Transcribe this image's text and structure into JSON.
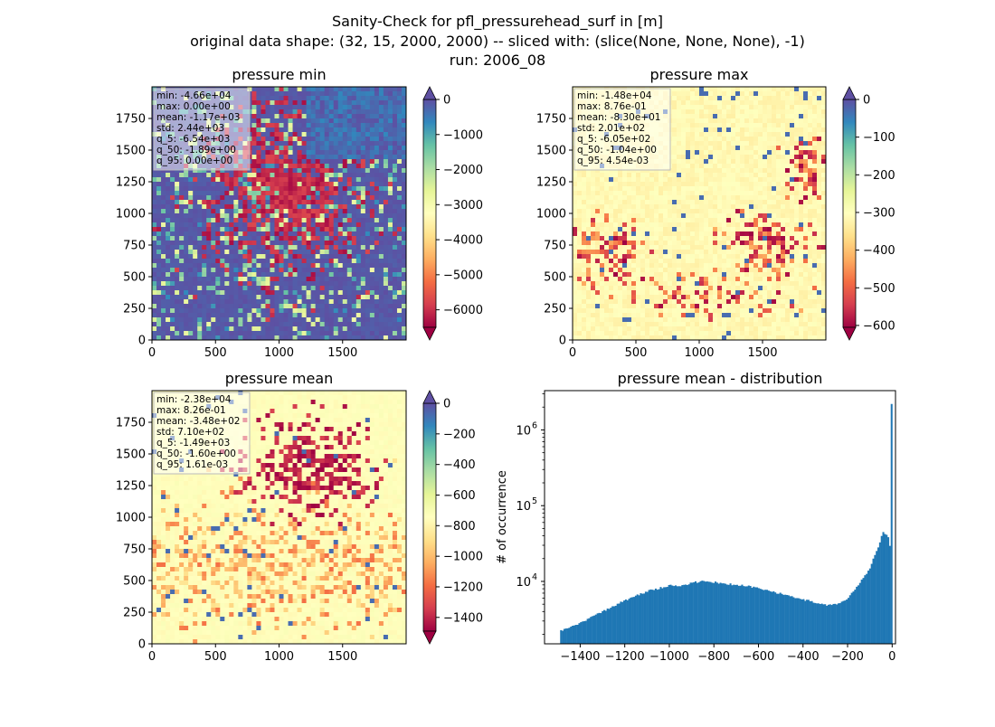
{
  "figure": {
    "title_lines": [
      "Sanity-Check for pfl_pressurehead_surf in [m]",
      "original data shape: (32, 15, 2000, 2000) -- sliced with: (slice(None, None, None), -1)",
      "run: 2006_08"
    ]
  },
  "colors": {
    "background": "#ffffff",
    "histogram_bar": "#1f77b4",
    "spectral": [
      "#9e0142",
      "#d53e4f",
      "#f46d43",
      "#fdae61",
      "#fee08b",
      "#ffffbf",
      "#e6f598",
      "#abdda4",
      "#66c2a5",
      "#3288bd",
      "#5e4fa2"
    ]
  },
  "chart_data": [
    {
      "id": "min",
      "type": "heatmap",
      "title": "pressure min",
      "colormap": "Spectral",
      "xlim": [
        0,
        2000
      ],
      "ylim": [
        0,
        2000
      ],
      "x_ticks": [
        "0",
        "500",
        "1000",
        "1500"
      ],
      "y_ticks": [
        "0",
        "250",
        "500",
        "750",
        "1000",
        "1250",
        "1500",
        "1750"
      ],
      "color_range": [
        -6500,
        0
      ],
      "colorbar_ticks": [
        "0",
        "−1000",
        "−2000",
        "−3000",
        "−4000",
        "−5000",
        "−6000"
      ],
      "colorbar_tick_values": [
        0,
        -1000,
        -2000,
        -3000,
        -4000,
        -5000,
        -6000
      ],
      "colorbar_extend": "both",
      "stats": [
        "min: -4.66e+04",
        "max: 0.00e+00",
        "mean: -1.17e+03",
        "std: 2.44e+03",
        "q_5: -6.54e+03",
        "q_50: -1.89e+00",
        "q_95: 0.00e+00"
      ]
    },
    {
      "id": "max",
      "type": "heatmap",
      "title": "pressure max",
      "colormap": "Spectral",
      "xlim": [
        0,
        2000
      ],
      "ylim": [
        0,
        2000
      ],
      "x_ticks": [
        "0",
        "500",
        "1000",
        "1500"
      ],
      "y_ticks": [
        "0",
        "250",
        "500",
        "750",
        "1000",
        "1250",
        "1500",
        "1750"
      ],
      "color_range": [
        -605,
        0
      ],
      "colorbar_ticks": [
        "0",
        "−100",
        "−200",
        "−300",
        "−400",
        "−500",
        "−600"
      ],
      "colorbar_tick_values": [
        0,
        -100,
        -200,
        -300,
        -400,
        -500,
        -600
      ],
      "colorbar_extend": "both",
      "stats": [
        "min: -1.48e+04",
        "max: 8.76e-01",
        "mean: -8.30e+01",
        "std: 2.01e+02",
        "q_5: -6.05e+02",
        "q_50: -1.04e+00",
        "q_95: 4.54e-03"
      ]
    },
    {
      "id": "mean",
      "type": "heatmap",
      "title": "pressure mean",
      "colormap": "Spectral",
      "xlim": [
        0,
        2000
      ],
      "ylim": [
        0,
        2000
      ],
      "x_ticks": [
        "0",
        "500",
        "1000",
        "1500"
      ],
      "y_ticks": [
        "0",
        "250",
        "500",
        "750",
        "1000",
        "1250",
        "1500",
        "1750"
      ],
      "color_range": [
        -1490,
        0
      ],
      "colorbar_ticks": [
        "0",
        "−200",
        "−400",
        "−600",
        "−800",
        "−1000",
        "−1200",
        "−1400"
      ],
      "colorbar_tick_values": [
        0,
        -200,
        -400,
        -600,
        -800,
        -1000,
        -1200,
        -1400
      ],
      "colorbar_extend": "both",
      "stats": [
        "min: -2.38e+04",
        "max: 8.26e-01",
        "mean: -3.48e+02",
        "std: 7.10e+02",
        "q_5: -1.49e+03",
        "q_50: -1.60e+00",
        "q_95: 1.61e-03"
      ]
    },
    {
      "id": "dist",
      "type": "bar",
      "title": "pressure mean - distribution",
      "ylabel": "# of occurrence",
      "yscale": "log",
      "xlim": [
        -1560,
        15
      ],
      "ylim": [
        1500,
        3300000
      ],
      "x_ticks": [
        "−1400",
        "−1200",
        "−1000",
        "−800",
        "−600",
        "−400",
        "−200",
        "0"
      ],
      "x_tick_values": [
        -1400,
        -1200,
        -1000,
        -800,
        -600,
        -400,
        -200,
        0
      ],
      "y_ticks": [
        "10",
        "10",
        "10"
      ],
      "y_tick_exponents": [
        "4",
        "5",
        "6"
      ],
      "y_tick_values": [
        10000,
        100000,
        1000000
      ],
      "bin_range": [
        -1490,
        1
      ],
      "profile": [
        [
          -1490,
          2200
        ],
        [
          -1400,
          2800
        ],
        [
          -1300,
          4000
        ],
        [
          -1200,
          5600
        ],
        [
          -1100,
          7400
        ],
        [
          -1000,
          8800
        ],
        [
          -950,
          8700
        ],
        [
          -900,
          9500
        ],
        [
          -850,
          10200
        ],
        [
          -800,
          9800
        ],
        [
          -750,
          9300
        ],
        [
          -700,
          9000
        ],
        [
          -650,
          8700
        ],
        [
          -600,
          8100
        ],
        [
          -550,
          7400
        ],
        [
          -500,
          6900
        ],
        [
          -450,
          6300
        ],
        [
          -400,
          5800
        ],
        [
          -350,
          5300
        ],
        [
          -300,
          4900
        ],
        [
          -250,
          5000
        ],
        [
          -200,
          6000
        ],
        [
          -150,
          9000
        ],
        [
          -100,
          15000
        ],
        [
          -60,
          30000
        ],
        [
          -40,
          45000
        ],
        [
          -20,
          40000
        ],
        [
          -10,
          30000
        ],
        [
          -2,
          2200000
        ],
        [
          1,
          2200000
        ]
      ]
    }
  ]
}
